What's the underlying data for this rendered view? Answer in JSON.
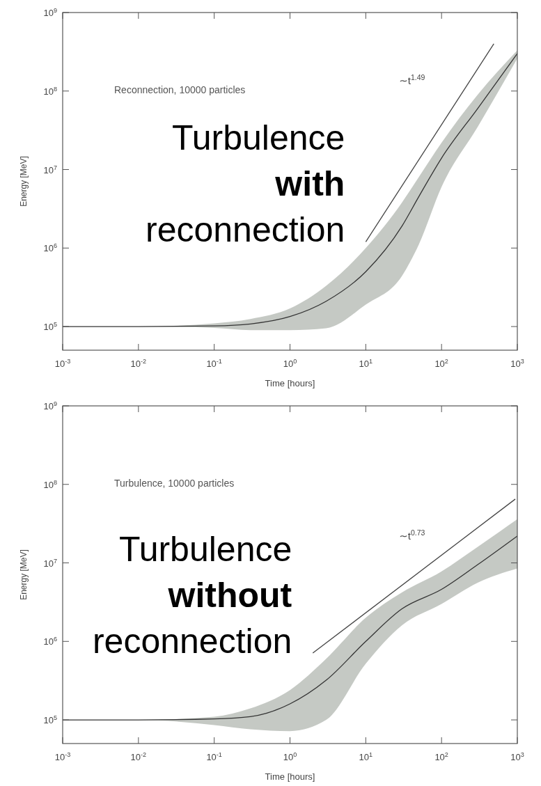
{
  "chart_data": [
    {
      "type": "line",
      "xlabel": "Time [hours]",
      "ylabel": "Energy [MeV]",
      "log": "xy",
      "xlim": [
        0.001,
        1000
      ],
      "ylim": [
        50000,
        1000000000
      ],
      "xticks": [
        {
          "value": 0.001,
          "label": "10$^{-3}$"
        },
        {
          "value": 0.01,
          "label": "10$^{-2}$"
        },
        {
          "value": 0.1,
          "label": "10$^{-1}$"
        },
        {
          "value": 1,
          "label": "10$^{0}$"
        },
        {
          "value": 10,
          "label": "10$^{1}$"
        },
        {
          "value": 100,
          "label": "10$^{2}$"
        },
        {
          "value": 1000,
          "label": "10$^{3}$"
        }
      ],
      "yticks": [
        {
          "value": 100000,
          "label": "10$^{5}$"
        },
        {
          "value": 1000000,
          "label": "10$^{6}$"
        },
        {
          "value": 10000000,
          "label": "10$^{7}$"
        },
        {
          "value": 100000000,
          "label": "10$^{8}$"
        },
        {
          "value": 1000000000,
          "label": "10$^{9}$"
        }
      ],
      "grid": false,
      "series": [
        {
          "color": "#333333",
          "x": [
            0.001,
            0.01,
            0.1,
            0.3,
            1,
            3,
            10,
            30,
            50,
            100,
            300,
            1000
          ],
          "values": [
            100000,
            100000,
            102000,
            108000,
            134000,
            210000,
            500000,
            1900000,
            4500000,
            14000000,
            60000000,
            300000000
          ],
          "lower": [
            100000,
            100000,
            96000,
            90000,
            90000,
            95000,
            190000,
            440000,
            1100000,
            6000000,
            35000000,
            260000000
          ],
          "upper": [
            100000,
            100000,
            110000,
            125000,
            170000,
            330000,
            1000000,
            3800000,
            8000000,
            22000000,
            90000000,
            330000000
          ]
        },
        {
          "color": "#444444",
          "x": [
            10,
            490
          ],
          "values": [
            1200000,
            400000000
          ]
        }
      ],
      "annotations": [
        "Reconnection, 10000 particles",
        "∼t$^{1.49}$",
        "Turbulence",
        "with",
        "reconnection"
      ]
    },
    {
      "type": "line",
      "xlabel": "Time [hours]",
      "ylabel": "Energy [MeV]",
      "log": "xy",
      "xlim": [
        0.001,
        1000
      ],
      "ylim": [
        50000,
        1000000000
      ],
      "xticks": [
        {
          "value": 0.001,
          "label": "10$^{-3}$"
        },
        {
          "value": 0.01,
          "label": "10$^{-2}$"
        },
        {
          "value": 0.1,
          "label": "10$^{-1}$"
        },
        {
          "value": 1,
          "label": "10$^{0}$"
        },
        {
          "value": 10,
          "label": "10$^{1}$"
        },
        {
          "value": 100,
          "label": "10$^{2}$"
        },
        {
          "value": 1000,
          "label": "10$^{3}$"
        }
      ],
      "yticks": [
        {
          "value": 100000,
          "label": "10$^{5}$"
        },
        {
          "value": 1000000,
          "label": "10$^{6}$"
        },
        {
          "value": 10000000,
          "label": "10$^{7}$"
        },
        {
          "value": 100000000,
          "label": "10$^{8}$"
        },
        {
          "value": 1000000000,
          "label": "10$^{9}$"
        }
      ],
      "grid": false,
      "series": [
        {
          "color": "#333333",
          "x": [
            0.001,
            0.01,
            0.1,
            0.3,
            1,
            3,
            10,
            30,
            100,
            300,
            1000
          ],
          "values": [
            100000,
            100000,
            103000,
            110000,
            160000,
            320000,
            1000000,
            2600000,
            4600000,
            9500000,
            22000000
          ],
          "lower": [
            100000,
            100000,
            86000,
            76000,
            72000,
            100000,
            520000,
            1600000,
            3000000,
            5600000,
            8500000
          ],
          "upper": [
            100000,
            100000,
            110000,
            140000,
            240000,
            600000,
            2000000,
            4200000,
            7800000,
            16000000,
            36000000
          ]
        },
        {
          "color": "#444444",
          "x": [
            2,
            940
          ],
          "values": [
            710000,
            65000000
          ]
        }
      ],
      "annotations": [
        "Turbulence, 10000 particles",
        "∼t$^{0.73}$",
        "Turbulence",
        "without",
        "reconnection"
      ]
    }
  ]
}
